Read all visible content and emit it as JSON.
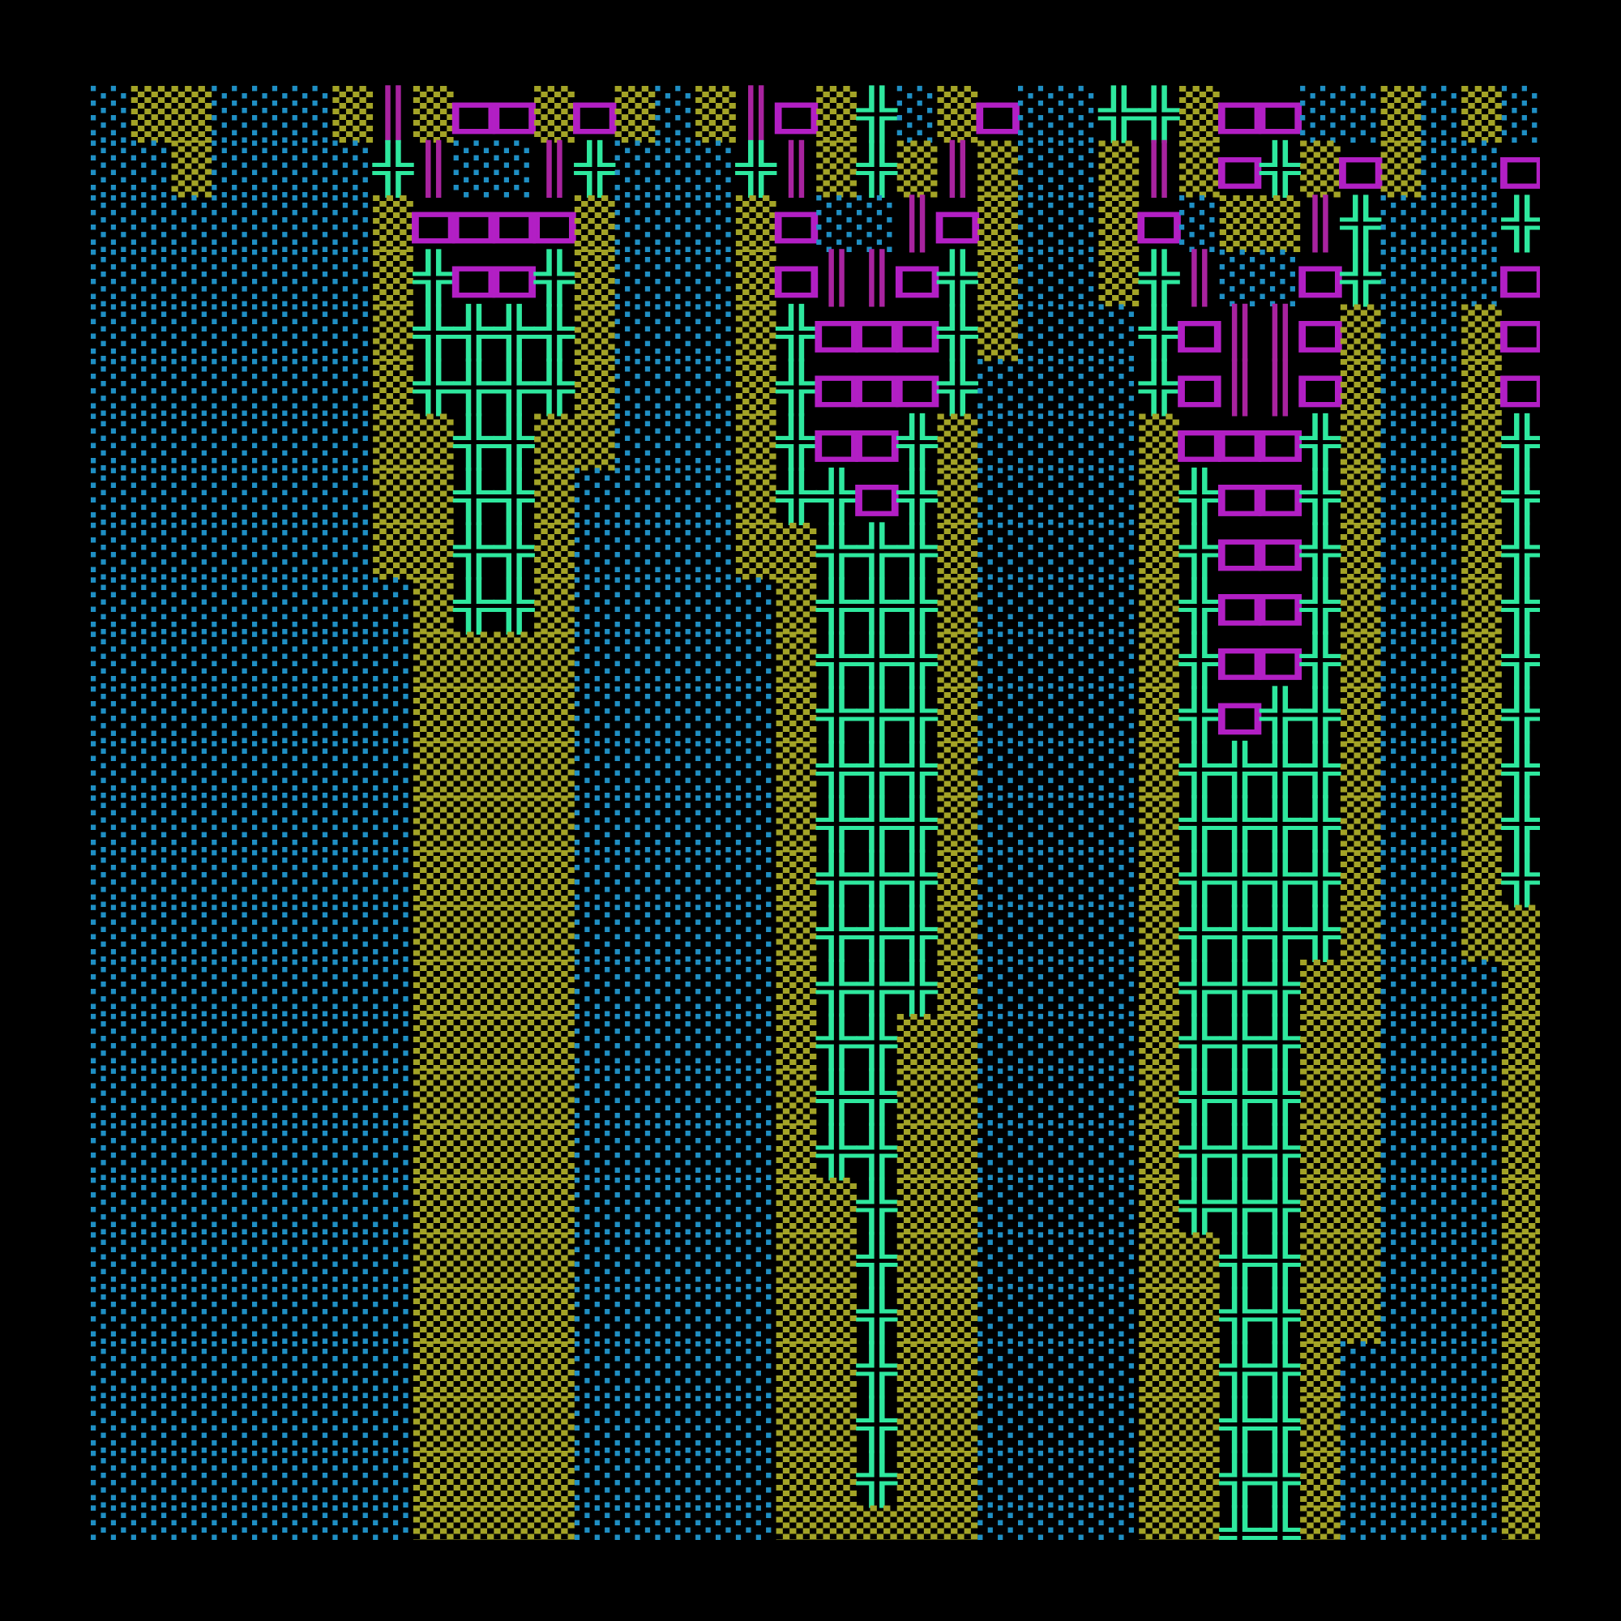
{
  "grid": {
    "colors": {
      "░": "#1f8fc4",
      "▒": "#a3a326",
      "╬": "#2ee89e",
      "□": "#b21fc4",
      "║": "#a8239f"
    },
    "rows": [
      "░▒▒░░░▒║▒□□▒□▒░▒║□▒╬░▒□░░╬╬▒□□░░▒░▒░",
      "░░▒░░░░╬║░░║╬░░░╬║▒╬▒║▒░░▒║▒□╬▒□▒░░□",
      "░░░░░░░▒□□□□▒░░░▒□░░║□▒░░▒□░▒▒║╬░░░╬",
      "░░░░░░░▒╬□□╬▒░░░▒□║║□╬▒░░▒╬║░░□╬░░░□",
      "░░░░░░░▒╬╬╬╬▒░░░▒╬□□□╬▒░░░╬□║║□▒░░▒□",
      "░░░░░░░▒╬╬╬╬▒░░░▒╬□□□╬░░░░╬□║║□▒░░▒□",
      "░░░░░░░▒▒╬╬▒▒░░░▒╬□□╬▒░░░░▒□□□╬▒░░▒╬",
      "░░░░░░░▒▒╬╬▒░░░░▒╬╬□╬▒░░░░▒╬□□╬▒░░▒╬",
      "░░░░░░░▒▒╬╬▒░░░░▒▒╬╬╬▒░░░░▒╬□□╬▒░░▒╬",
      "░░░░░░░░▒╬╬▒░░░░░▒╬╬╬▒░░░░▒╬□□╬▒░░▒╬",
      "░░░░░░░░▒▒▒▒░░░░░▒╬╬╬▒░░░░▒╬□□╬▒░░▒╬",
      "░░░░░░░░▒▒▒▒░░░░░▒╬╬╬▒░░░░▒╬□╬╬▒░░▒╬",
      "░░░░░░░░▒▒▒▒░░░░░▒╬╬╬▒░░░░▒╬╬╬╬▒░░▒╬",
      "░░░░░░░░▒▒▒▒░░░░░▒╬╬╬▒░░░░▒╬╬╬╬▒░░▒╬",
      "░░░░░░░░▒▒▒▒░░░░░▒╬╬╬▒░░░░▒╬╬╬╬▒░░▒╬",
      "░░░░░░░░▒▒▒▒░░░░░▒╬╬╬▒░░░░▒╬╬╬╬▒░░▒▒",
      "░░░░░░░░▒▒▒▒░░░░░▒╬╬╬▒░░░░▒╬╬╬▒▒░░░▒",
      "░░░░░░░░▒▒▒▒░░░░░▒╬╬▒▒░░░░▒╬╬╬▒▒░░░▒",
      "░░░░░░░░▒▒▒▒░░░░░▒╬╬▒▒░░░░▒╬╬╬▒▒░░░▒",
      "░░░░░░░░▒▒▒▒░░░░░▒╬╬▒▒░░░░▒╬╬╬▒▒░░░▒",
      "░░░░░░░░▒▒▒▒░░░░░▒▒╬▒▒░░░░▒╬╬╬▒▒░░░▒",
      "░░░░░░░░▒▒▒▒░░░░░▒▒╬▒▒░░░░▒▒╬╬▒▒░░░▒",
      "░░░░░░░░▒▒▒▒░░░░░▒▒╬▒▒░░░░▒▒╬╬▒▒░░░▒",
      "░░░░░░░░▒▒▒▒░░░░░▒▒╬▒▒░░░░▒▒╬╬▒░░░░▒",
      "░░░░░░░░▒▒▒▒░░░░░▒▒╬▒▒░░░░▒▒╬╬▒░░░░▒",
      "░░░░░░░░▒▒▒▒░░░░░▒▒╬▒▒░░░░▒▒╬╬▒░░░░▒",
      "░░░░░░░░▒▒▒▒░░░░░▒▒▒▒▒░░░░▒▒╬╬▒░░░░▒"
    ]
  }
}
